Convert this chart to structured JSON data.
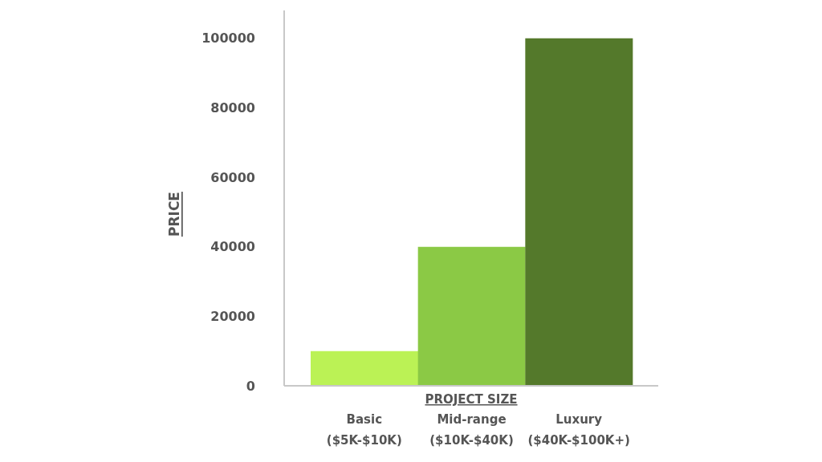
{
  "chart_data": {
    "type": "bar",
    "xlabel": "PROJECT SIZE",
    "ylabel": "PRICE",
    "categories": [
      "Basic ($5K-$10K)",
      "Mid-range ($10K-$40K)",
      "Luxury ($40K-$100K+)"
    ],
    "values": [
      10000,
      40000,
      100000
    ],
    "colors": [
      "#bbf255",
      "#8bc945",
      "#54792b"
    ],
    "ylim": [
      0,
      108000
    ],
    "yticks": [
      0,
      20000,
      40000,
      60000,
      80000,
      100000
    ]
  }
}
